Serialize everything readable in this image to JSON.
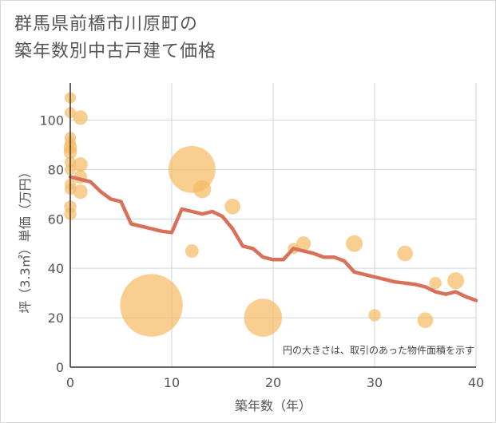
{
  "chart_data": {
    "type": "scatter",
    "title_line1": "群馬県前橋市川原町の",
    "title_line2": "築年数別中古戸建て価格",
    "xlabel": "築年数（年）",
    "ylabel": "坪（3.3㎡）単価（万円）",
    "xlim": [
      0,
      40
    ],
    "ylim": [
      0,
      115
    ],
    "xticks": [
      0,
      10,
      20,
      30,
      40
    ],
    "yticks": [
      0,
      20,
      40,
      60,
      80,
      100
    ],
    "note": "円の大きさは、取引のあった物件面積を示す",
    "colors": {
      "bubble": "#f5b85c",
      "line": "#d9705a",
      "grid": "#c9d6e3",
      "axis": "#333333"
    },
    "points": [
      {
        "x": 0,
        "y": 109,
        "size": 1
      },
      {
        "x": 0,
        "y": 103,
        "size": 1
      },
      {
        "x": 1,
        "y": 101,
        "size": 1.3
      },
      {
        "x": 0,
        "y": 93,
        "size": 1
      },
      {
        "x": 0,
        "y": 91,
        "size": 1
      },
      {
        "x": 0,
        "y": 89,
        "size": 1.2
      },
      {
        "x": 0,
        "y": 87,
        "size": 1.2
      },
      {
        "x": 0,
        "y": 83,
        "size": 1
      },
      {
        "x": 1,
        "y": 82,
        "size": 1.3
      },
      {
        "x": 0,
        "y": 80,
        "size": 1
      },
      {
        "x": 1,
        "y": 77,
        "size": 1.2
      },
      {
        "x": 0,
        "y": 74,
        "size": 1
      },
      {
        "x": 0,
        "y": 72,
        "size": 1
      },
      {
        "x": 1,
        "y": 71,
        "size": 1.3
      },
      {
        "x": 0,
        "y": 65,
        "size": 1.1
      },
      {
        "x": 0,
        "y": 62,
        "size": 1.1
      },
      {
        "x": 8,
        "y": 25,
        "size": 5.6
      },
      {
        "x": 12,
        "y": 80,
        "size": 4.2
      },
      {
        "x": 12,
        "y": 47,
        "size": 1.2
      },
      {
        "x": 13,
        "y": 72,
        "size": 1.6
      },
      {
        "x": 16,
        "y": 65,
        "size": 1.4
      },
      {
        "x": 19,
        "y": 20,
        "size": 3.4
      },
      {
        "x": 22,
        "y": 48,
        "size": 1
      },
      {
        "x": 23,
        "y": 50,
        "size": 1.3
      },
      {
        "x": 28,
        "y": 50,
        "size": 1.5
      },
      {
        "x": 30,
        "y": 21,
        "size": 1.1
      },
      {
        "x": 33,
        "y": 46,
        "size": 1.4
      },
      {
        "x": 35,
        "y": 19,
        "size": 1.4
      },
      {
        "x": 36,
        "y": 34,
        "size": 1.1
      },
      {
        "x": 38,
        "y": 35,
        "size": 1.5
      }
    ],
    "trend": {
      "x": [
        0,
        1,
        2,
        3,
        4,
        5,
        6,
        7,
        8,
        9,
        10,
        11,
        12,
        13,
        14,
        15,
        16,
        17,
        18,
        19,
        20,
        21,
        22,
        23,
        24,
        25,
        26,
        27,
        28,
        29,
        30,
        31,
        32,
        33,
        34,
        35,
        36,
        37,
        38,
        39,
        40
      ],
      "y": [
        77,
        76,
        75,
        71,
        68,
        67,
        58,
        57,
        56,
        55,
        54.5,
        64,
        63,
        62,
        63,
        61,
        56,
        49,
        48,
        44.5,
        43.5,
        43.5,
        48,
        47,
        46,
        44.5,
        44.5,
        43,
        38.5,
        37.5,
        36.5,
        35.5,
        34.5,
        34,
        33.5,
        32.5,
        30.5,
        29.5,
        30.5,
        28.5,
        27
      ]
    }
  }
}
